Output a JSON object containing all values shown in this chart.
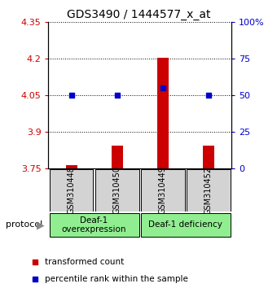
{
  "title": "GDS3490 / 1444577_x_at",
  "samples": [
    "GSM310448",
    "GSM310450",
    "GSM310449",
    "GSM310452"
  ],
  "bar_values": [
    3.762,
    3.845,
    4.202,
    3.843
  ],
  "percentile_values": [
    50,
    50,
    55,
    50
  ],
  "ylim_left": [
    3.75,
    4.35
  ],
  "yticks_left": [
    3.75,
    3.9,
    4.05,
    4.2,
    4.35
  ],
  "ylim_right": [
    0,
    100
  ],
  "yticks_right": [
    0,
    25,
    50,
    75,
    100
  ],
  "ytick_labels_right": [
    "0",
    "25",
    "50",
    "75",
    "100%"
  ],
  "bar_color": "#cc0000",
  "square_color": "#0000cc",
  "group1_label": "Deaf-1\noverexpression",
  "group2_label": "Deaf-1 deficiency",
  "group_bg_color": "#90ee90",
  "sample_bg_color": "#d3d3d3",
  "protocol_label": "protocol",
  "legend_bar_label": "transformed count",
  "legend_sq_label": "percentile rank within the sample",
  "title_fontsize": 10,
  "tick_fontsize": 8,
  "bar_width": 0.25
}
